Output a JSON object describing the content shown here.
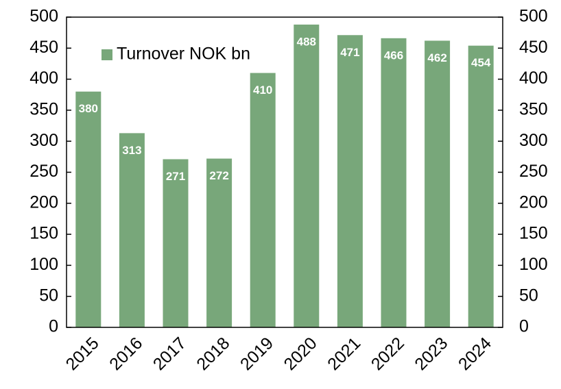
{
  "chart_data": {
    "type": "bar",
    "categories": [
      "2015",
      "2016",
      "2017",
      "2018",
      "2019",
      "2020",
      "2021",
      "2022",
      "2023",
      "2024"
    ],
    "series": [
      {
        "name": "Turnover NOK bn",
        "color": "#78a77a",
        "values": [
          380,
          313,
          271,
          272,
          410,
          488,
          471,
          466,
          462,
          454
        ]
      }
    ],
    "ylim": [
      0,
      500
    ],
    "yticks": [
      0,
      50,
      100,
      150,
      200,
      250,
      300,
      350,
      400,
      450,
      500
    ],
    "y2lim": [
      0,
      500
    ],
    "y2ticks": [
      0,
      50,
      100,
      150,
      200,
      250,
      300,
      350,
      400,
      450,
      500
    ],
    "grid": false,
    "legend": "top-left"
  }
}
